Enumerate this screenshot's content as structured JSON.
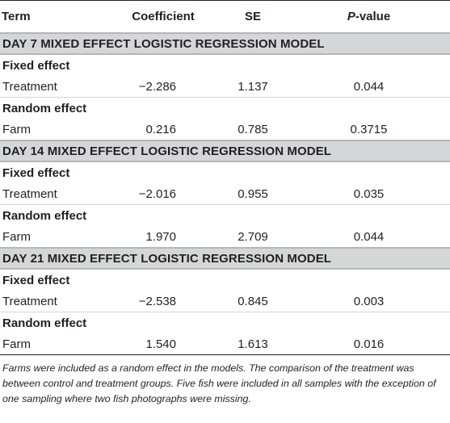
{
  "header": {
    "term": "Term",
    "coefficient": "Coefficient",
    "se": "SE",
    "p_italic": "P",
    "p_rest": "-value"
  },
  "sections": [
    {
      "title": "DAY 7 MIXED EFFECT LOGISTIC REGRESSION MODEL",
      "fixed_label": "Fixed effect",
      "fixed_row": {
        "term": "Treatment",
        "coef": "−2.286",
        "se": "1.137",
        "p": "0.044"
      },
      "random_label": "Random effect",
      "random_row": {
        "term": "Farm",
        "coef": "0.216",
        "se": "0.785",
        "p": "0.3715"
      }
    },
    {
      "title": "DAY 14 MIXED EFFECT LOGISTIC REGRESSION MODEL",
      "fixed_label": "Fixed effect",
      "fixed_row": {
        "term": "Treatment",
        "coef": "−2.016",
        "se": "0.955",
        "p": "0.035"
      },
      "random_label": "Random effect",
      "random_row": {
        "term": "Farm",
        "coef": "1.970",
        "se": "2.709",
        "p": "0.044"
      }
    },
    {
      "title": "DAY 21 MIXED EFFECT LOGISTIC REGRESSION MODEL",
      "fixed_label": "Fixed effect",
      "fixed_row": {
        "term": "Treatment",
        "coef": "−2.538",
        "se": "0.845",
        "p": "0.003"
      },
      "random_label": "Random effect",
      "random_row": {
        "term": "Farm",
        "coef": "1.540",
        "se": "1.613",
        "p": "0.016"
      }
    }
  ],
  "footnote": "Farms were included as a random effect in the models. The comparison of the treatment was between control and treatment groups. Five fish were included in all samples with the exception of one sampling where two fish photographs were missing."
}
